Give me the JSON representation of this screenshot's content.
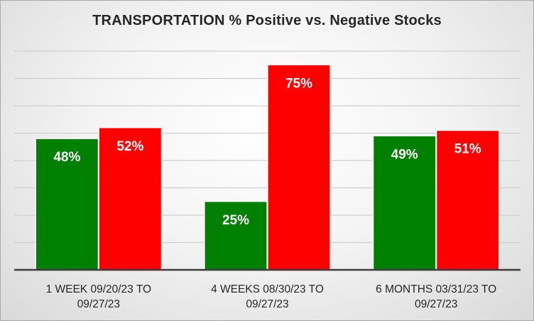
{
  "chart_data": {
    "type": "bar",
    "title": "TRANSPORTATION  % Positive vs. Negative Stocks",
    "categories": [
      [
        "1 WEEK 09/20/23 TO",
        "09/27/23"
      ],
      [
        "4 WEEKS 08/30/23 TO",
        "09/27/23"
      ],
      [
        "6 MONTHS 03/31/23 TO",
        "09/27/23"
      ]
    ],
    "series": [
      {
        "values": [
          48,
          25,
          49
        ],
        "labels": [
          "48%",
          "25%",
          "49%"
        ],
        "color": "#008000"
      },
      {
        "values": [
          52,
          75,
          51
        ],
        "labels": [
          "52%",
          "75%",
          "51%"
        ],
        "color": "#ff0000"
      }
    ],
    "ylim": [
      0,
      80
    ],
    "grid": true,
    "legend": "none",
    "background": "#f2f2f2"
  }
}
